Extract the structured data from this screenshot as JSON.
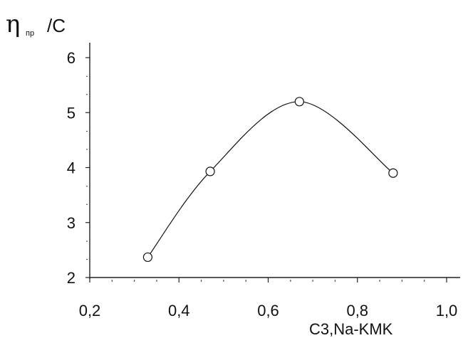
{
  "chart_data": {
    "type": "line",
    "xlabel": "C3,Na-KMK",
    "ylabel": {
      "symbol": "η",
      "subscript": "пр",
      "suffix": "/C"
    },
    "xlim": [
      0.2,
      1.0
    ],
    "ylim": [
      2,
      6
    ],
    "x_ticks": [
      "0,2",
      "0,4",
      "0,6",
      "0,8",
      "1,0"
    ],
    "y_ticks": [
      "2",
      "3",
      "4",
      "5",
      "6"
    ],
    "grid": false,
    "smooth": true,
    "marker": "open-circle",
    "series": [
      {
        "points": [
          {
            "x": 0.33,
            "y": 2.37
          },
          {
            "x": 0.47,
            "y": 3.93
          },
          {
            "x": 0.67,
            "y": 5.2
          },
          {
            "x": 0.88,
            "y": 3.9
          }
        ]
      }
    ]
  }
}
